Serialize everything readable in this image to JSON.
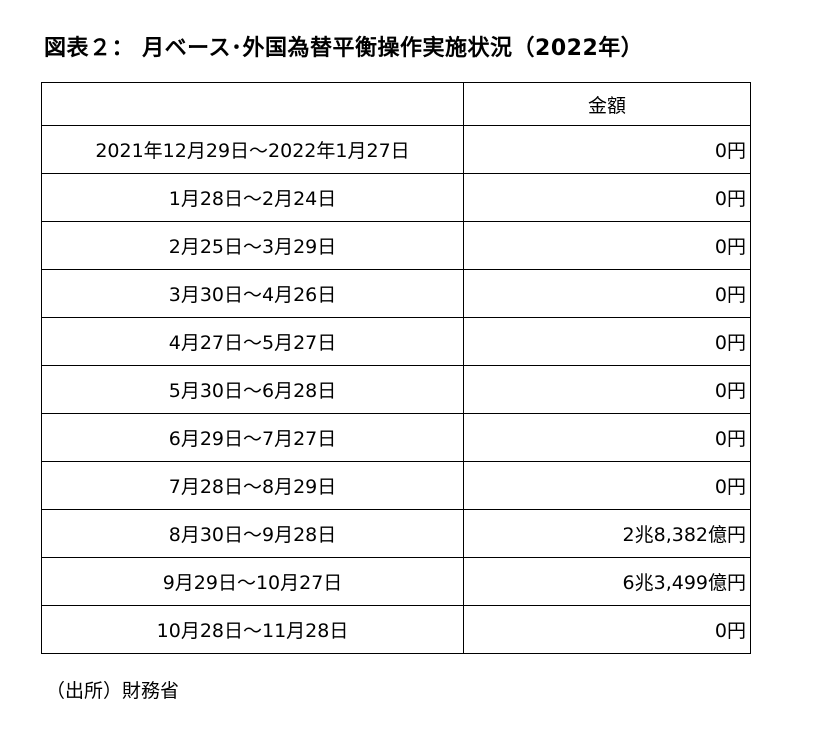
{
  "title": "図表２： 月ベース･外国為替平衡操作実施状況（2022年）",
  "table": {
    "headers": [
      "",
      "金額"
    ],
    "rows": [
      {
        "period": "2021年12月29日～2022年1月27日",
        "amount": "0円"
      },
      {
        "period": "1月28日～2月24日",
        "amount": "0円"
      },
      {
        "period": "2月25日～3月29日",
        "amount": "0円"
      },
      {
        "period": "3月30日～4月26日",
        "amount": "0円"
      },
      {
        "period": "4月27日～5月27日",
        "amount": "0円"
      },
      {
        "period": "5月30日～6月28日",
        "amount": "0円"
      },
      {
        "period": "6月29日～7月27日",
        "amount": "0円"
      },
      {
        "period": "7月28日～8月29日",
        "amount": "0円"
      },
      {
        "period": "8月30日～9月28日",
        "amount": "2兆8,382億円"
      },
      {
        "period": "9月29日～10月27日",
        "amount": "6兆3,499億円"
      },
      {
        "period": "10月28日～11月28日",
        "amount": "0円"
      }
    ]
  },
  "source": "（出所）財務省"
}
